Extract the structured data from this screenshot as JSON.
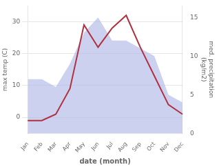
{
  "chart_data": {
    "type": "line",
    "xlabel": "date (month)",
    "ylabel": "max temp (C)",
    "y2label": "med. precipitation\n(kg/m2)",
    "categories": [
      "Jan",
      "Feb",
      "Mar",
      "Apr",
      "May",
      "Jun",
      "Jul",
      "Aug",
      "Sep",
      "Oct",
      "Nov",
      "Dec"
    ],
    "series": [
      {
        "type": "area",
        "axis": "y2",
        "color": "#b0b8e8",
        "values": [
          7,
          7,
          6,
          9,
          13,
          15,
          12,
          12,
          11,
          10,
          5,
          4
        ]
      },
      {
        "type": "line",
        "color": "#b03040",
        "values": [
          -1,
          -1,
          1,
          9,
          29,
          22,
          28,
          32,
          22,
          13,
          4,
          1
        ]
      }
    ],
    "ylim": [
      -5,
      35
    ],
    "yticks": [
      0,
      10,
      20,
      30
    ],
    "y2lim": [
      0,
      16.5
    ],
    "y2ticks": [
      0,
      5,
      10,
      15
    ],
    "grid": true
  }
}
